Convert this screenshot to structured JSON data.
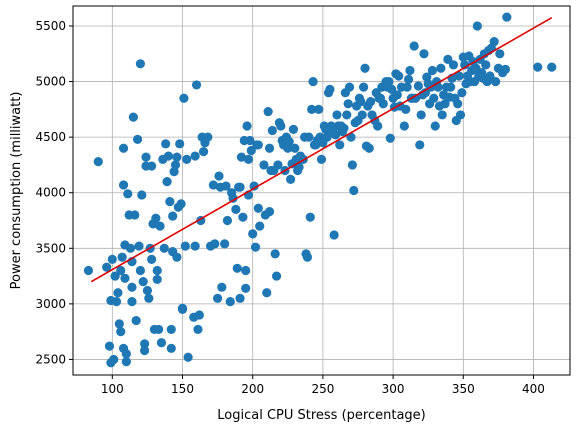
{
  "chart_data": {
    "type": "scatter",
    "title": "",
    "xlabel": "Logical CPU Stress (percentage)",
    "ylabel": "Power consumption (milliwatt)",
    "xlim": [
      72,
      426
    ],
    "ylim": [
      2360,
      5680
    ],
    "grid": true,
    "xticks": [
      100,
      150,
      200,
      250,
      300,
      350,
      400
    ],
    "yticks": [
      2500,
      3000,
      3500,
      4000,
      4500,
      5000,
      5500
    ],
    "colors": {
      "points": "#1f77b4",
      "fit": "#e00000",
      "grid": "#b0b0b0"
    },
    "fit_line": {
      "x": [
        85,
        413
      ],
      "y": [
        3200,
        5575
      ]
    },
    "points": [
      [
        83,
        3300
      ],
      [
        90,
        4280
      ],
      [
        96,
        3330
      ],
      [
        98,
        2620
      ],
      [
        99,
        2470
      ],
      [
        99,
        3030
      ],
      [
        100,
        3400
      ],
      [
        101,
        2500
      ],
      [
        102,
        3250
      ],
      [
        103,
        3020
      ],
      [
        104,
        3100
      ],
      [
        105,
        2820
      ],
      [
        106,
        2750
      ],
      [
        106,
        3300
      ],
      [
        107,
        3420
      ],
      [
        108,
        4400
      ],
      [
        108,
        4070
      ],
      [
        108,
        2600
      ],
      [
        109,
        3530
      ],
      [
        109,
        3230
      ],
      [
        110,
        2550
      ],
      [
        110,
        2480
      ],
      [
        111,
        3990
      ],
      [
        112,
        3800
      ],
      [
        113,
        3500
      ],
      [
        114,
        3150
      ],
      [
        114,
        3020
      ],
      [
        114,
        3380
      ],
      [
        115,
        4680
      ],
      [
        116,
        3800
      ],
      [
        117,
        2850
      ],
      [
        118,
        4480
      ],
      [
        119,
        3520
      ],
      [
        120,
        3300
      ],
      [
        120,
        5160
      ],
      [
        121,
        3980
      ],
      [
        122,
        3200
      ],
      [
        123,
        2580
      ],
      [
        123,
        2640
      ],
      [
        124,
        4320
      ],
      [
        124,
        4240
      ],
      [
        125,
        3120
      ],
      [
        126,
        3050
      ],
      [
        127,
        3500
      ],
      [
        128,
        4240
      ],
      [
        128,
        3400
      ],
      [
        129,
        3720
      ],
      [
        130,
        2770
      ],
      [
        131,
        3770
      ],
      [
        132,
        3300
      ],
      [
        132,
        3220
      ],
      [
        133,
        2770
      ],
      [
        134,
        3700
      ],
      [
        135,
        2650
      ],
      [
        136,
        4300
      ],
      [
        137,
        3500
      ],
      [
        138,
        4440
      ],
      [
        139,
        4100
      ],
      [
        140,
        4330
      ],
      [
        141,
        3920
      ],
      [
        142,
        2600
      ],
      [
        142,
        2770
      ],
      [
        143,
        3790
      ],
      [
        143,
        3470
      ],
      [
        144,
        4190
      ],
      [
        145,
        4250
      ],
      [
        146,
        4320
      ],
      [
        146,
        3420
      ],
      [
        147,
        3870
      ],
      [
        148,
        4440
      ],
      [
        149,
        3900
      ],
      [
        150,
        2960
      ],
      [
        150,
        2950
      ],
      [
        151,
        4850
      ],
      [
        152,
        3520
      ],
      [
        153,
        4300
      ],
      [
        154,
        2520
      ],
      [
        158,
        2880
      ],
      [
        159,
        4330
      ],
      [
        159,
        3520
      ],
      [
        160,
        4970
      ],
      [
        161,
        2770
      ],
      [
        162,
        2900
      ],
      [
        163,
        3750
      ],
      [
        164,
        4500
      ],
      [
        165,
        4370
      ],
      [
        166,
        4450
      ],
      [
        168,
        4500
      ],
      [
        170,
        3520
      ],
      [
        172,
        4070
      ],
      [
        173,
        3540
      ],
      [
        175,
        3050
      ],
      [
        176,
        4150
      ],
      [
        177,
        4050
      ],
      [
        178,
        3150
      ],
      [
        180,
        3540
      ],
      [
        181,
        4060
      ],
      [
        182,
        3750
      ],
      [
        184,
        3020
      ],
      [
        185,
        4000
      ],
      [
        186,
        3950
      ],
      [
        188,
        3850
      ],
      [
        189,
        3320
      ],
      [
        190,
        4050
      ],
      [
        191,
        4050
      ],
      [
        191,
        3050
      ],
      [
        192,
        4320
      ],
      [
        193,
        3780
      ],
      [
        194,
        4470
      ],
      [
        195,
        3300
      ],
      [
        195,
        3140
      ],
      [
        196,
        4600
      ],
      [
        197,
        4300
      ],
      [
        197,
        3980
      ],
      [
        198,
        4470
      ],
      [
        199,
        4380
      ],
      [
        200,
        3630
      ],
      [
        201,
        4060
      ],
      [
        202,
        3510
      ],
      [
        203,
        4430
      ],
      [
        204,
        4430
      ],
      [
        204,
        3860
      ],
      [
        205,
        3700
      ],
      [
        208,
        4250
      ],
      [
        209,
        3800
      ],
      [
        210,
        3100
      ],
      [
        211,
        4730
      ],
      [
        212,
        4400
      ],
      [
        212,
        3830
      ],
      [
        213,
        4200
      ],
      [
        214,
        4560
      ],
      [
        215,
        4200
      ],
      [
        216,
        3450
      ],
      [
        217,
        3250
      ],
      [
        218,
        4250
      ],
      [
        219,
        4630
      ],
      [
        220,
        4600
      ],
      [
        221,
        4470
      ],
      [
        222,
        4430
      ],
      [
        223,
        4200
      ],
      [
        224,
        4500
      ],
      [
        225,
        4400
      ],
      [
        226,
        4460
      ],
      [
        227,
        4120
      ],
      [
        228,
        4260
      ],
      [
        229,
        4570
      ],
      [
        230,
        4400
      ],
      [
        231,
        4300
      ],
      [
        232,
        4200
      ],
      [
        233,
        4230
      ],
      [
        234,
        4330
      ],
      [
        236,
        4300
      ],
      [
        237,
        4500
      ],
      [
        238,
        3450
      ],
      [
        239,
        3420
      ],
      [
        240,
        4500
      ],
      [
        241,
        3780
      ],
      [
        242,
        4750
      ],
      [
        243,
        5000
      ],
      [
        244,
        4430
      ],
      [
        245,
        4430
      ],
      [
        246,
        4470
      ],
      [
        247,
        4750
      ],
      [
        248,
        4500
      ],
      [
        249,
        4300
      ],
      [
        250,
        4450
      ],
      [
        251,
        4600
      ],
      [
        252,
        4570
      ],
      [
        253,
        4500
      ],
      [
        254,
        4900
      ],
      [
        255,
        4930
      ],
      [
        256,
        4600
      ],
      [
        257,
        4550
      ],
      [
        258,
        3620
      ],
      [
        259,
        4520
      ],
      [
        260,
        4700
      ],
      [
        261,
        4600
      ],
      [
        262,
        4430
      ],
      [
        263,
        4600
      ],
      [
        264,
        4550
      ],
      [
        265,
        4580
      ],
      [
        266,
        4900
      ],
      [
        267,
        4700
      ],
      [
        268,
        4800
      ],
      [
        269,
        4950
      ],
      [
        270,
        4500
      ],
      [
        271,
        4250
      ],
      [
        272,
        4020
      ],
      [
        273,
        4630
      ],
      [
        274,
        4780
      ],
      [
        275,
        4650
      ],
      [
        276,
        4850
      ],
      [
        277,
        4820
      ],
      [
        278,
        4700
      ],
      [
        279,
        4950
      ],
      [
        280,
        5120
      ],
      [
        281,
        4420
      ],
      [
        282,
        4780
      ],
      [
        283,
        4400
      ],
      [
        284,
        4820
      ],
      [
        285,
        4700
      ],
      [
        287,
        4650
      ],
      [
        288,
        4900
      ],
      [
        289,
        4600
      ],
      [
        290,
        4850
      ],
      [
        291,
        4850
      ],
      [
        292,
        4950
      ],
      [
        293,
        4800
      ],
      [
        295,
        5000
      ],
      [
        296,
        4950
      ],
      [
        297,
        5000
      ],
      [
        298,
        4490
      ],
      [
        299,
        4930
      ],
      [
        300,
        4850
      ],
      [
        301,
        4770
      ],
      [
        302,
        5070
      ],
      [
        303,
        4880
      ],
      [
        304,
        5050
      ],
      [
        305,
        4780
      ],
      [
        306,
        4950
      ],
      [
        308,
        4600
      ],
      [
        309,
        4750
      ],
      [
        310,
        4950
      ],
      [
        311,
        5020
      ],
      [
        312,
        5100
      ],
      [
        313,
        4850
      ],
      [
        314,
        4850
      ],
      [
        315,
        5320
      ],
      [
        316,
        4850
      ],
      [
        318,
        4960
      ],
      [
        319,
        4430
      ],
      [
        320,
        4700
      ],
      [
        321,
        4880
      ],
      [
        322,
        5250
      ],
      [
        323,
        4900
      ],
      [
        324,
        5040
      ],
      [
        325,
        4980
      ],
      [
        326,
        4800
      ],
      [
        327,
        4950
      ],
      [
        328,
        5100
      ],
      [
        329,
        4850
      ],
      [
        330,
        4600
      ],
      [
        331,
        5000
      ],
      [
        332,
        4950
      ],
      [
        333,
        4780
      ],
      [
        334,
        5120
      ],
      [
        335,
        4700
      ],
      [
        336,
        4880
      ],
      [
        337,
        4800
      ],
      [
        338,
        4950
      ],
      [
        339,
        5200
      ],
      [
        340,
        4860
      ],
      [
        341,
        4950
      ],
      [
        342,
        5030
      ],
      [
        343,
        5150
      ],
      [
        344,
        4850
      ],
      [
        345,
        4650
      ],
      [
        346,
        4800
      ],
      [
        347,
        5050
      ],
      [
        348,
        4700
      ],
      [
        349,
        4900
      ],
      [
        350,
        5220
      ],
      [
        351,
        5150
      ],
      [
        352,
        4980
      ],
      [
        353,
        5050
      ],
      [
        354,
        5230
      ],
      [
        355,
        5000
      ],
      [
        356,
        5100
      ],
      [
        357,
        5180
      ],
      [
        358,
        5000
      ],
      [
        359,
        5120
      ],
      [
        360,
        5500
      ],
      [
        361,
        5050
      ],
      [
        362,
        5200
      ],
      [
        363,
        5080
      ],
      [
        364,
        5030
      ],
      [
        365,
        5250
      ],
      [
        366,
        5150
      ],
      [
        367,
        5000
      ],
      [
        368,
        5280
      ],
      [
        369,
        5050
      ],
      [
        370,
        5300
      ],
      [
        372,
        5360
      ],
      [
        373,
        5000
      ],
      [
        375,
        5120
      ],
      [
        376,
        5250
      ],
      [
        378,
        5080
      ],
      [
        380,
        5110
      ],
      [
        381,
        5580
      ],
      [
        403,
        5130
      ],
      [
        413,
        5130
      ]
    ]
  }
}
